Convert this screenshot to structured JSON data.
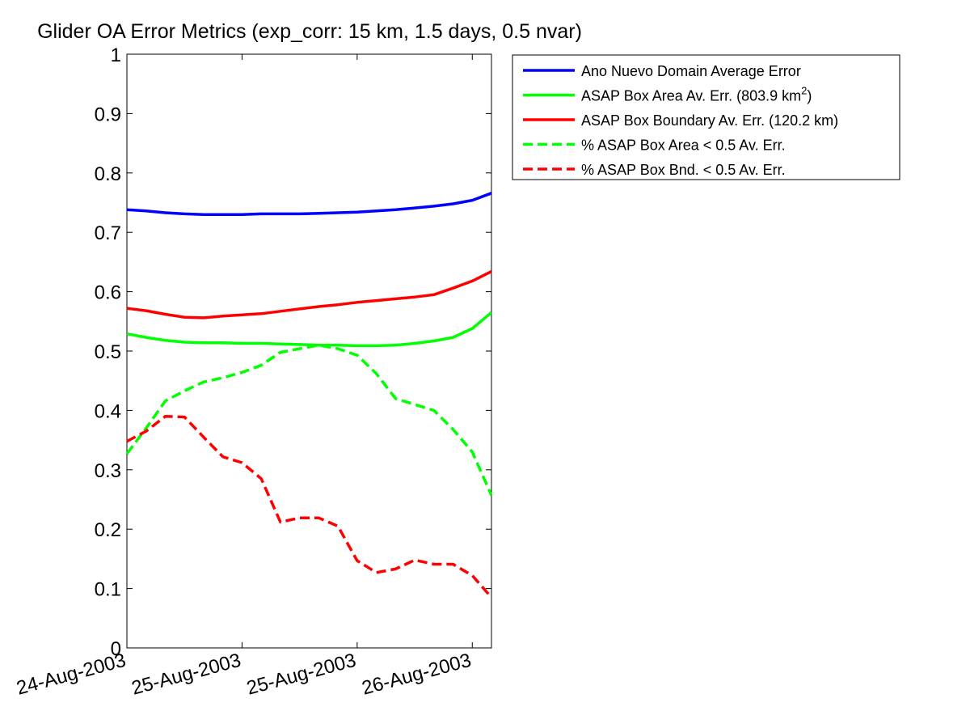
{
  "chart_data": {
    "type": "line",
    "title": "Glider OA Error Metrics (exp_corr: 15 km, 1.5 days, 0.5 nvar)",
    "xlabel": "",
    "ylabel": "",
    "ylim": [
      0,
      1
    ],
    "yticks": [
      "0",
      "0.1",
      "0.2",
      "0.3",
      "0.4",
      "0.5",
      "0.6",
      "0.7",
      "0.8",
      "0.9",
      "1"
    ],
    "xticks": [
      "24-Aug-2003",
      "25-Aug-2003",
      "25-Aug-2003",
      "26-Aug-2003"
    ],
    "xlim_hours": [
      0,
      76
    ],
    "xtick_hours": [
      0,
      24,
      48,
      72
    ],
    "grid": false,
    "legend_position": "top-right (outside axes)",
    "series": [
      {
        "name": "Ano Nuevo Domain Average Error",
        "color": "#0000ff",
        "dash": "solid",
        "x": [
          0,
          4,
          8,
          12,
          16,
          20,
          24,
          28,
          32,
          36,
          40,
          44,
          48,
          52,
          56,
          60,
          64,
          68,
          72,
          76
        ],
        "y": [
          0.738,
          0.736,
          0.733,
          0.731,
          0.73,
          0.73,
          0.73,
          0.731,
          0.731,
          0.731,
          0.732,
          0.733,
          0.734,
          0.736,
          0.738,
          0.741,
          0.744,
          0.748,
          0.754,
          0.766
        ]
      },
      {
        "name": "ASAP Box Area Av. Err. (803.9 km²)",
        "legend_parts": [
          "ASAP Box Area Av. Err. (803.9 km",
          "2",
          ")"
        ],
        "color": "#00ff00",
        "dash": "solid",
        "x": [
          0,
          4,
          8,
          12,
          16,
          20,
          24,
          28,
          32,
          36,
          40,
          44,
          48,
          52,
          56,
          60,
          64,
          68,
          72,
          76
        ],
        "y": [
          0.529,
          0.523,
          0.518,
          0.515,
          0.514,
          0.514,
          0.513,
          0.513,
          0.512,
          0.511,
          0.51,
          0.51,
          0.509,
          0.509,
          0.51,
          0.513,
          0.517,
          0.523,
          0.538,
          0.565
        ]
      },
      {
        "name": "ASAP Box Boundary Av. Err. (120.2 km)",
        "color": "#ff0000",
        "dash": "solid",
        "x": [
          0,
          4,
          8,
          12,
          16,
          20,
          24,
          28,
          32,
          36,
          40,
          44,
          48,
          52,
          56,
          60,
          64,
          68,
          72,
          76
        ],
        "y": [
          0.572,
          0.568,
          0.562,
          0.557,
          0.556,
          0.559,
          0.561,
          0.563,
          0.567,
          0.571,
          0.575,
          0.578,
          0.582,
          0.585,
          0.588,
          0.591,
          0.595,
          0.606,
          0.618,
          0.634
        ]
      },
      {
        "name": "% ASAP Box Area < 0.5 Av. Err.",
        "color": "#00ff00",
        "dash": "dashed",
        "x": [
          0,
          4,
          8,
          12,
          16,
          20,
          24,
          28,
          32,
          36,
          40,
          44,
          48,
          52,
          56,
          60,
          64,
          68,
          72,
          76
        ],
        "y": [
          0.327,
          0.37,
          0.416,
          0.433,
          0.448,
          0.455,
          0.464,
          0.476,
          0.498,
          0.504,
          0.51,
          0.504,
          0.493,
          0.462,
          0.42,
          0.41,
          0.4,
          0.368,
          0.33,
          0.257
        ]
      },
      {
        "name": "% ASAP Box Bnd. < 0.5 Av. Err.",
        "color": "#ff0000",
        "dash": "dashed",
        "x": [
          0,
          4,
          8,
          12,
          16,
          20,
          24,
          28,
          32,
          36,
          40,
          44,
          48,
          52,
          56,
          60,
          64,
          68,
          72,
          76
        ],
        "y": [
          0.348,
          0.365,
          0.39,
          0.389,
          0.355,
          0.322,
          0.312,
          0.285,
          0.212,
          0.219,
          0.219,
          0.205,
          0.147,
          0.127,
          0.133,
          0.148,
          0.141,
          0.141,
          0.122,
          0.085
        ]
      }
    ]
  }
}
